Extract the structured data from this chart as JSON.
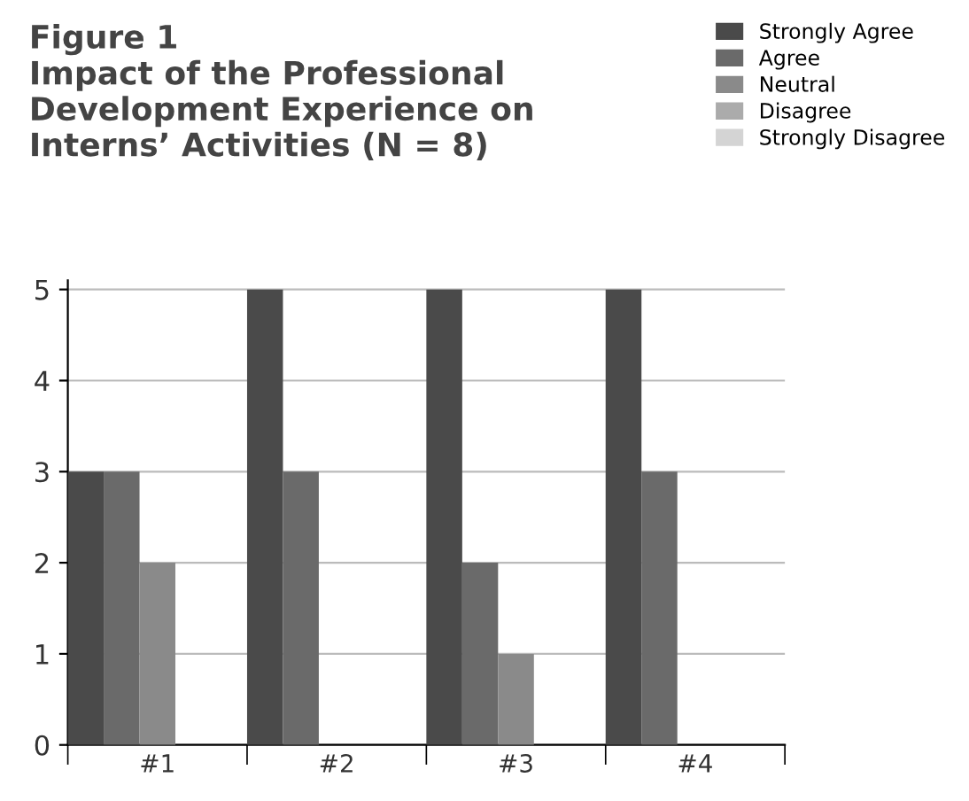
{
  "chart_data": {
    "type": "bar",
    "title": "Figure 1\nImpact of the Professional\nDevelopment Experience on\nInterns’ Activities (N = 8)",
    "categories": [
      "#1",
      "#2",
      "#3",
      "#4"
    ],
    "series": [
      {
        "name": "Strongly Agree",
        "color": "#4a4a4a",
        "values": [
          3,
          5,
          5,
          5
        ]
      },
      {
        "name": "Agree",
        "color": "#6a6a6a",
        "values": [
          3,
          3,
          2,
          3
        ]
      },
      {
        "name": "Neutral",
        "color": "#8a8a8a",
        "values": [
          2,
          0,
          1,
          0
        ]
      },
      {
        "name": "Disagree",
        "color": "#ababab",
        "values": [
          0,
          0,
          0,
          0
        ]
      },
      {
        "name": "Strongly Disagree",
        "color": "#d4d4d4",
        "values": [
          0,
          0,
          0,
          0
        ]
      }
    ],
    "ylim": [
      0,
      5.1
    ],
    "yticks": [
      0,
      1,
      2,
      3,
      4,
      5
    ],
    "grid": "y",
    "legend": "top right"
  }
}
